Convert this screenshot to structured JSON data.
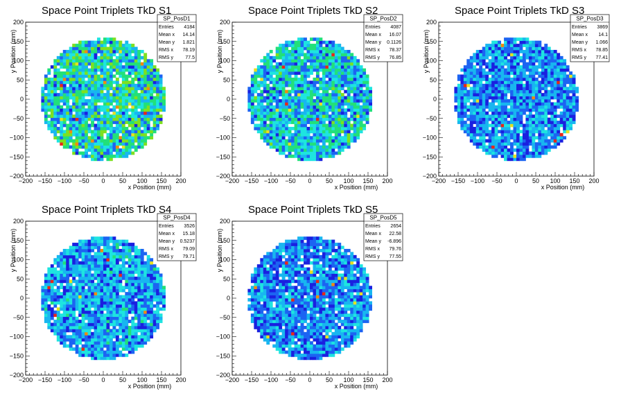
{
  "palette": [
    "#1a20e0",
    "#1c64f2",
    "#18b6f0",
    "#1ee4e0",
    "#22e07a",
    "#7ee020",
    "#e8e020",
    "#f08a10",
    "#e82818"
  ],
  "chart_data": [
    {
      "type": "heatmap",
      "title": "Space Point Triplets TkD S1",
      "xlabel": "x Position (mm)",
      "ylabel": "y Position (mm)",
      "xlim": [
        -200,
        200
      ],
      "ylim": [
        -200,
        200
      ],
      "xticks": [
        "−200",
        "−150",
        "−100",
        "−50",
        "0",
        "50",
        "100",
        "150",
        "200"
      ],
      "yticks": [
        "−200",
        "−150",
        "−100",
        "−50",
        "0",
        "50",
        "100",
        "150",
        "200"
      ],
      "stats": {
        "name": "SP_PosD1",
        "rows": [
          {
            "label": "Entries",
            "value": "4184"
          },
          {
            "label": "Mean x",
            "value": "14.14"
          },
          {
            "label": "Mean y",
            "value": "1.821"
          },
          {
            "label": "RMS x",
            "value": "78.19"
          },
          {
            "label": "RMS y",
            "value": "77.5"
          }
        ]
      },
      "radius_mm": 160,
      "mean": [
        14.14,
        1.821
      ],
      "level": 1.0,
      "hot_x_mm": 60,
      "seed": 11
    },
    {
      "type": "heatmap",
      "title": "Space Point Triplets TkD S2",
      "xlabel": "x Position (mm)",
      "ylabel": "y Position (mm)",
      "xlim": [
        -200,
        200
      ],
      "ylim": [
        -200,
        200
      ],
      "xticks": [
        "−200",
        "−150",
        "−100",
        "−50",
        "0",
        "50",
        "100",
        "150",
        "200"
      ],
      "yticks": [
        "−200",
        "−150",
        "−100",
        "−50",
        "0",
        "50",
        "100",
        "150",
        "200"
      ],
      "stats": {
        "name": "SP_PosD2",
        "rows": [
          {
            "label": "Entries",
            "value": "4087"
          },
          {
            "label": "Mean x",
            "value": "16.07"
          },
          {
            "label": "Mean y",
            "value": "0.1126"
          },
          {
            "label": "RMS x",
            "value": "78.37"
          },
          {
            "label": "RMS y",
            "value": "76.85"
          }
        ]
      },
      "radius_mm": 160,
      "mean": [
        16.07,
        0.1126
      ],
      "level": 0.9,
      "hot_x_mm": 80,
      "seed": 23
    },
    {
      "type": "heatmap",
      "title": "Space Point Triplets TkD S3",
      "xlabel": "x Position (mm)",
      "ylabel": "y Position (mm)",
      "xlim": [
        -200,
        200
      ],
      "ylim": [
        -200,
        200
      ],
      "xticks": [
        "−200",
        "−150",
        "−100",
        "−50",
        "0",
        "50",
        "100",
        "150",
        "200"
      ],
      "yticks": [
        "−200",
        "−150",
        "−100",
        "−50",
        "0",
        "50",
        "100",
        "150",
        "200"
      ],
      "stats": {
        "name": "SP_PosD3",
        "rows": [
          {
            "label": "Entries",
            "value": "3869"
          },
          {
            "label": "Mean x",
            "value": "14.1"
          },
          {
            "label": "Mean y",
            "value": "1.066"
          },
          {
            "label": "RMS x",
            "value": "78.85"
          },
          {
            "label": "RMS y",
            "value": "77.41"
          }
        ]
      },
      "radius_mm": 160,
      "mean": [
        14.1,
        1.066
      ],
      "level": 0.62,
      "hot_x_mm": 60,
      "seed": 37
    },
    {
      "type": "heatmap",
      "title": "Space Point Triplets TkD S4",
      "xlabel": "x Position (mm)",
      "ylabel": "y Position (mm)",
      "xlim": [
        -200,
        200
      ],
      "ylim": [
        -200,
        200
      ],
      "xticks": [
        "−200",
        "−150",
        "−100",
        "−50",
        "0",
        "50",
        "100",
        "150",
        "200"
      ],
      "yticks": [
        "−200",
        "−150",
        "−100",
        "−50",
        "0",
        "50",
        "100",
        "150",
        "200"
      ],
      "stats": {
        "name": "SP_PosD4",
        "rows": [
          {
            "label": "Entries",
            "value": "3526"
          },
          {
            "label": "Mean x",
            "value": "15.18"
          },
          {
            "label": "Mean y",
            "value": "0.5237"
          },
          {
            "label": "RMS x",
            "value": "79.09"
          },
          {
            "label": "RMS y",
            "value": "79.71"
          }
        ]
      },
      "radius_mm": 160,
      "mean": [
        15.18,
        0.5237
      ],
      "level": 0.72,
      "hot_x_mm": 40,
      "seed": 51
    },
    {
      "type": "heatmap",
      "title": "Space Point Triplets TkD S5",
      "xlabel": "x Position (mm)",
      "ylabel": "y Position (mm)",
      "xlim": [
        -200,
        200
      ],
      "ylim": [
        -200,
        200
      ],
      "xticks": [
        "−200",
        "−150",
        "−100",
        "−50",
        "0",
        "50",
        "100",
        "150",
        "200"
      ],
      "yticks": [
        "−200",
        "−150",
        "−100",
        "−50",
        "0",
        "50",
        "100",
        "150",
        "200"
      ],
      "stats": {
        "name": "SP_PosD5",
        "rows": [
          {
            "label": "Entries",
            "value": "2654"
          },
          {
            "label": "Mean x",
            "value": "22.58"
          },
          {
            "label": "Mean y",
            "value": "-6.896"
          },
          {
            "label": "RMS x",
            "value": "79.76"
          },
          {
            "label": "RMS y",
            "value": "77.55"
          }
        ]
      },
      "radius_mm": 160,
      "mean": [
        22.58,
        -6.896
      ],
      "level": 0.6,
      "hot_x_mm": 90,
      "seed": 67
    }
  ]
}
